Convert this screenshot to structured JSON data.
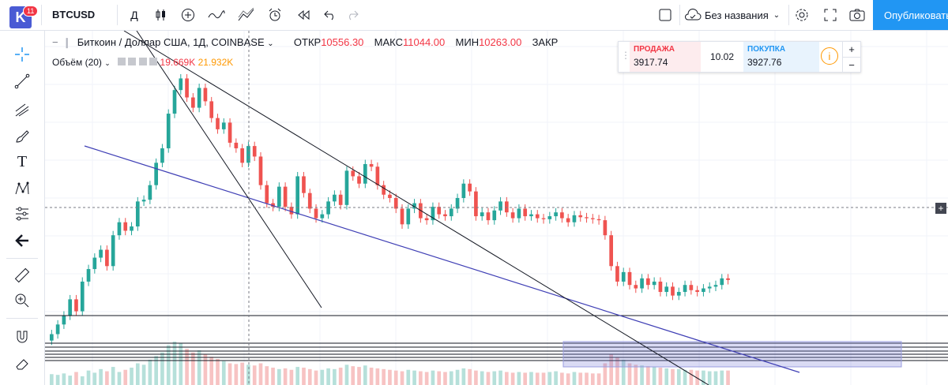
{
  "app": {
    "badge": "11",
    "logo": "K"
  },
  "header": {
    "symbol": "BTCUSD",
    "interval": "Д",
    "layout_name": "Без названия",
    "publish_label": "Опубликовать"
  },
  "legend": {
    "title": "Биткоин / Доллар США, 1Д, COINBASE",
    "open_label": "ОТКР",
    "open_value": "10556.30",
    "high_label": "МАКС",
    "high_value": "11044.00",
    "low_label": "МИН",
    "low_value": "10263.00",
    "close_label": "ЗАКР",
    "volume_label": "Объём (20)",
    "volume_value": "19.669K",
    "volume_ma": "21.932K"
  },
  "trade": {
    "sell_label": "ПРОДАЖА",
    "sell_price": "3917.74",
    "spread": "10.02",
    "buy_label": "ПОКУПКА",
    "buy_price": "3927.76"
  },
  "colors": {
    "up": "#26a69a",
    "down": "#ef5350",
    "accent": "#2196f3",
    "trend_blue": "#3f3fb5"
  },
  "chart_data": {
    "type": "candlestick",
    "series_name": "BTCUSD",
    "x_labels": [],
    "closes": [
      2500,
      2700,
      2900,
      3300,
      3000,
      3800,
      4200,
      4600,
      4900,
      4300,
      5500,
      6100,
      5700,
      5900,
      7200,
      7300,
      8200,
      9800,
      11000,
      14500,
      17500,
      19200,
      16500,
      15200,
      17800,
      16000,
      14000,
      12800,
      13500,
      11500,
      11000,
      9800,
      11200,
      10300,
      8200,
      7100,
      6900,
      8100,
      6900,
      6500,
      8800,
      7700,
      6800,
      6300,
      6500,
      7200,
      7600,
      7000,
      9200,
      8800,
      8300,
      9700,
      9500,
      8200,
      7600,
      7400,
      6800,
      6000,
      6800,
      7100,
      6300,
      6200,
      6900,
      6500,
      6400,
      6800,
      7400,
      8300,
      7800,
      6400,
      6600,
      6200,
      6700,
      7200,
      6600,
      6300,
      6800,
      6400,
      6500,
      6300,
      6250,
      6400,
      6600,
      6300,
      6100,
      6450,
      6350,
      6300,
      6250,
      6200,
      5500,
      4300,
      3800,
      4100,
      3700,
      3600,
      3900,
      3700,
      3800,
      3500,
      3650,
      3400,
      3500,
      3700,
      3550,
      3500,
      3600,
      3650,
      3700,
      3900,
      3850
    ],
    "volumes": [
      15,
      14,
      16,
      13,
      18,
      12,
      20,
      17,
      22,
      19,
      25,
      18,
      21,
      24,
      30,
      28,
      35,
      40,
      45,
      55,
      60,
      58,
      50,
      45,
      48,
      42,
      39,
      36,
      33,
      30,
      29,
      31,
      28,
      27,
      30,
      26,
      24,
      22,
      23,
      21,
      25,
      24,
      22,
      20,
      21,
      23,
      22,
      24,
      28,
      26,
      25,
      27,
      24,
      23,
      22,
      21,
      20,
      19,
      21,
      20,
      19,
      18,
      20,
      19,
      18,
      19,
      21,
      23,
      22,
      20,
      19,
      18,
      19,
      20,
      18,
      17,
      18,
      17,
      18,
      17,
      17,
      18,
      19,
      17,
      16,
      18,
      17,
      17,
      16,
      16,
      30,
      42,
      38,
      35,
      30,
      28,
      27,
      26,
      25,
      24,
      23,
      22,
      22,
      21,
      21,
      20,
      20,
      19,
      19,
      20,
      20
    ]
  }
}
